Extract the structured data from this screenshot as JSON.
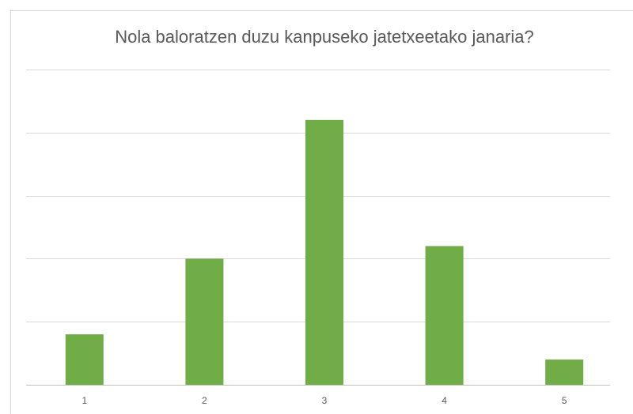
{
  "chart_data": {
    "type": "bar",
    "title": "Nola baloratzen duzu kanpuseko jatetxeetako janaria?",
    "categories": [
      "1",
      "2",
      "3",
      "4",
      "5"
    ],
    "values": [
      0.8,
      2,
      4.2,
      2.2,
      0.4
    ],
    "color": "#70ad47",
    "ylim": [
      0,
      5
    ],
    "yticks": [
      0,
      1,
      2,
      3,
      4,
      5
    ],
    "grid": true
  }
}
